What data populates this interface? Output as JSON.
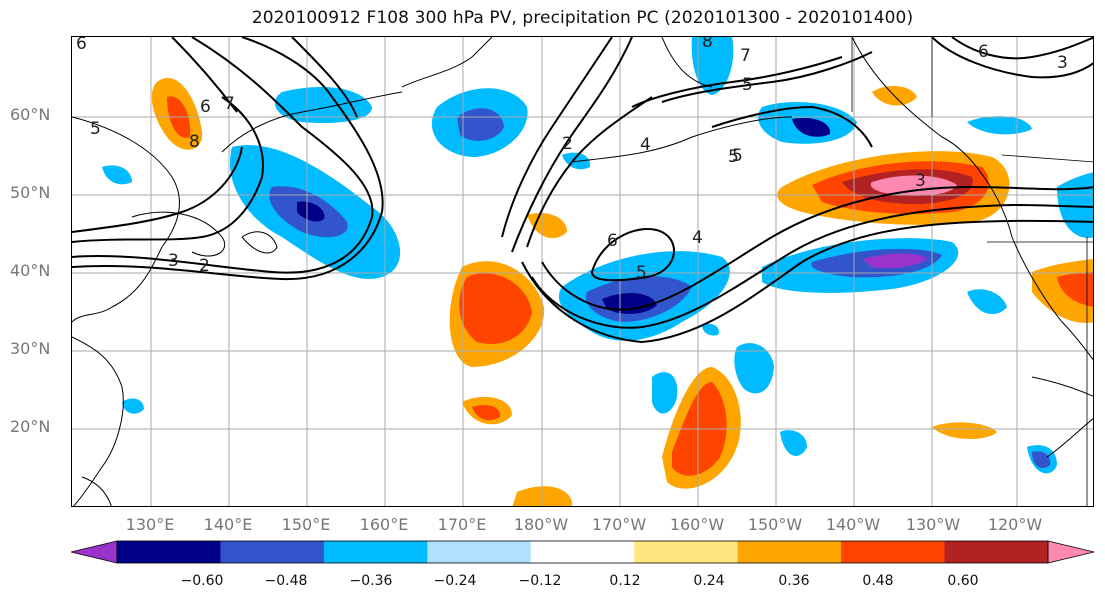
{
  "title": "2020100912 F108 300 hPa PV, precipitation PC (2020101300 - 2020101400)",
  "lat_labels": [
    "60°N",
    "50°N",
    "40°N",
    "30°N",
    "20°N"
  ],
  "lon_labels": [
    "130°E",
    "140°E",
    "150°E",
    "160°E",
    "170°E",
    "180°W",
    "170°W",
    "160°W",
    "150°W",
    "140°W",
    "130°W",
    "120°W"
  ],
  "colorbar": {
    "ticks": [
      "−0.60",
      "−0.48",
      "−0.36",
      "−0.24",
      "−0.12",
      "0.12",
      "0.24",
      "0.36",
      "0.48",
      "0.60"
    ],
    "colors": [
      "#9933cc",
      "#000088",
      "#3355cc",
      "#00bbff",
      "#b0e0ff",
      "#ffffff",
      "#ffe680",
      "#ffa500",
      "#ff4400",
      "#b22222",
      "#ff88b0"
    ]
  },
  "contour_labels": [
    {
      "text": "6"
    },
    {
      "text": "7"
    },
    {
      "text": "5"
    },
    {
      "text": "6"
    },
    {
      "text": "8"
    },
    {
      "text": "3"
    },
    {
      "text": "2"
    },
    {
      "text": "2"
    },
    {
      "text": "4"
    },
    {
      "text": "5"
    },
    {
      "text": "6"
    },
    {
      "text": "5"
    },
    {
      "text": "4"
    },
    {
      "text": "8"
    },
    {
      "text": "7"
    },
    {
      "text": "5"
    },
    {
      "text": "6"
    },
    {
      "text": "3"
    },
    {
      "text": "5"
    },
    {
      "text": "3"
    }
  ]
}
